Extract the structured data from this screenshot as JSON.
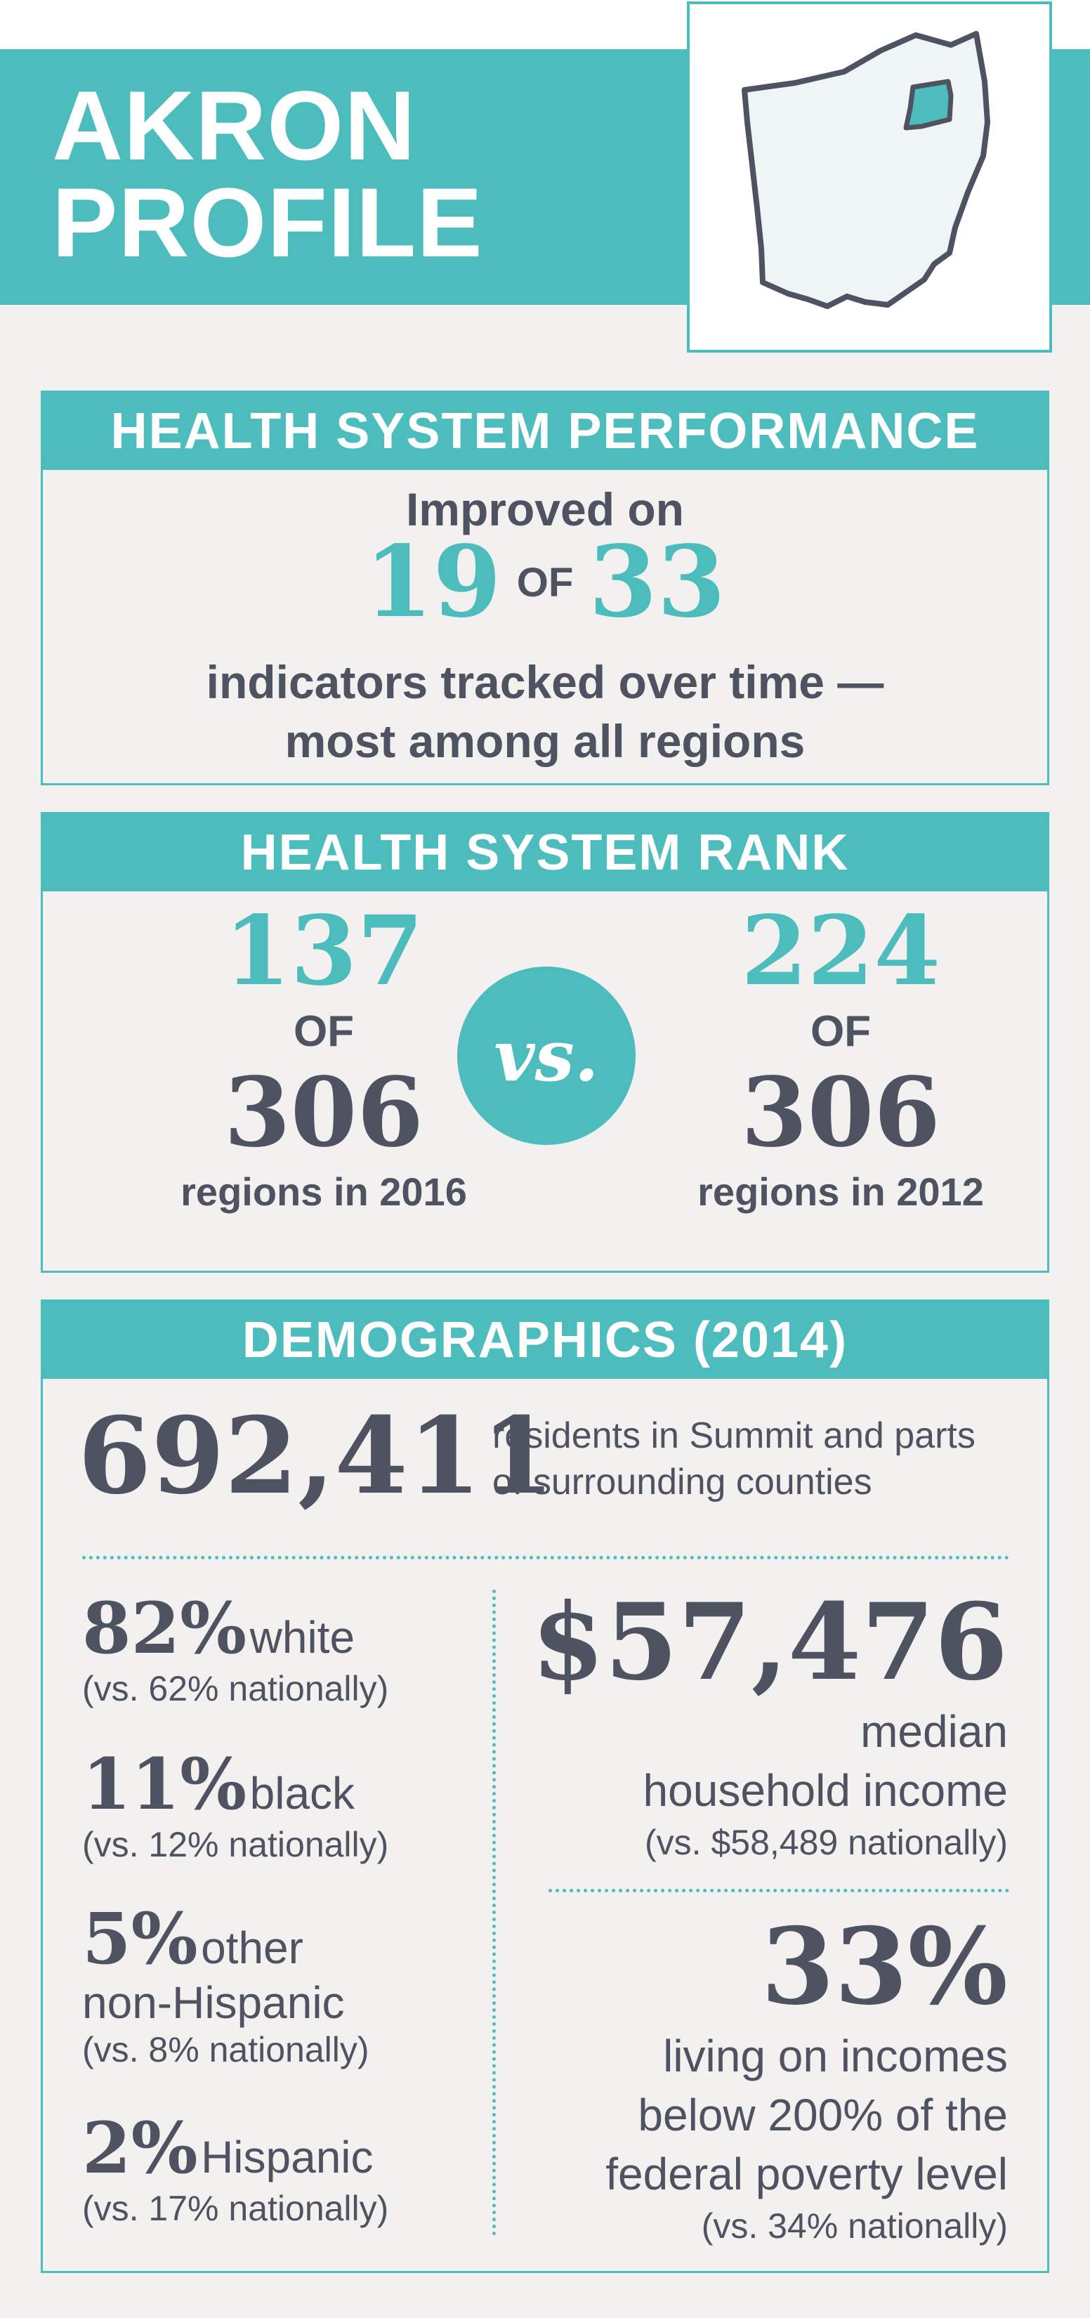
{
  "header": {
    "title_line1": "AKRON",
    "title_line2": "PROFILE"
  },
  "colors": {
    "accent": "#4dbcbc",
    "text": "#4f5260",
    "background": "#f2f1f0"
  },
  "performance": {
    "heading": "HEALTH SYSTEM PERFORMANCE",
    "line1": "Improved on",
    "improved": "19",
    "of_word": "OF",
    "total": "33",
    "line3a": "indicators tracked over time —",
    "line3b": "most among all regions"
  },
  "rank": {
    "heading": "HEALTH SYSTEM RANK",
    "left": {
      "rank": "137",
      "of_word": "OF",
      "total": "306",
      "caption": "regions in 2016"
    },
    "vs_label": "vs.",
    "right": {
      "rank": "224",
      "of_word": "OF",
      "total": "306",
      "caption": "regions in 2012"
    }
  },
  "demographics": {
    "heading": "DEMOGRAPHICS (2014)",
    "population": "692,411",
    "population_text_1": "residents in Summit and parts",
    "population_text_2": "of surrounding counties",
    "groups": [
      {
        "pct": "82%",
        "label": "white",
        "label2": "",
        "national": "(vs. 62% nationally)"
      },
      {
        "pct": "11%",
        "label": "black",
        "label2": "",
        "national": "(vs. 12% nationally)"
      },
      {
        "pct": "5%",
        "label": "other",
        "label2": "non-Hispanic",
        "national": "(vs. 8% nationally)"
      },
      {
        "pct": "2%",
        "label": "Hispanic",
        "label2": "",
        "national": "(vs. 17% nationally)"
      }
    ],
    "income": {
      "value": "$57,476",
      "label1": "median",
      "label2": "household income",
      "national": "(vs. $58,489 nationally)"
    },
    "poverty": {
      "value": "33%",
      "label1": "living on incomes",
      "label2": "below 200% of the",
      "label3": "federal poverty level",
      "national": "(vs. 34% nationally)"
    }
  }
}
